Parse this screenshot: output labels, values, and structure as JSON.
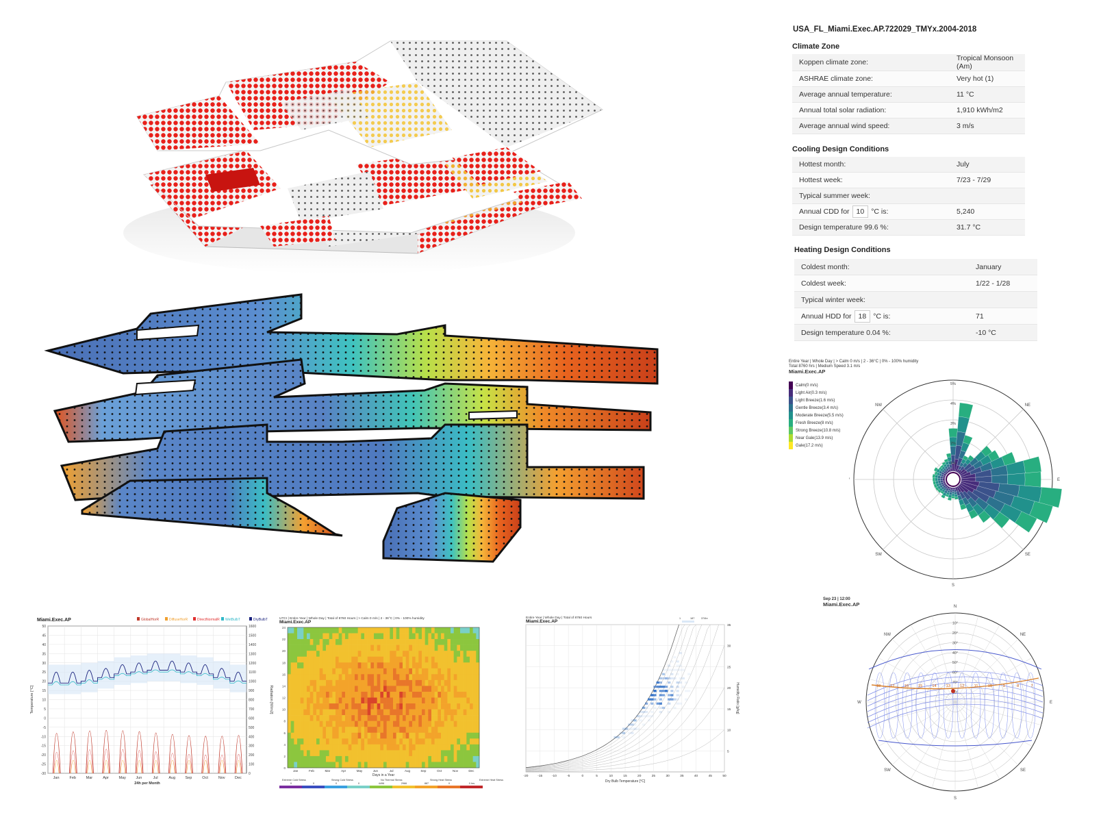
{
  "summary": {
    "file_title": "USA_FL_Miami.Exec.AP.722029_TMYx.2004-2018",
    "climate_zone": {
      "heading": "Climate Zone",
      "rows": [
        {
          "label": "Koppen climate zone:",
          "value": "Tropical Monsoon (Am)"
        },
        {
          "label": "ASHRAE climate zone:",
          "value": "Very hot (1)"
        },
        {
          "label": "Average annual temperature:",
          "value": "11 °C"
        },
        {
          "label": "Annual total solar radiation:",
          "value": "1,910 kWh/m2"
        },
        {
          "label": "Average annual wind speed:",
          "value": "3 m/s"
        }
      ]
    },
    "cooling": {
      "heading": "Cooling Design Conditions",
      "hottest_month_label": "Hottest month:",
      "hottest_month": "July",
      "hottest_week_label": "Hottest week:",
      "hottest_week": "7/23 - 7/29",
      "typical_week_label": "Typical summer week:",
      "typical_week": "",
      "cdd_prefix": "Annual CDD for",
      "cdd_base": "10",
      "cdd_suffix": "°C is:",
      "cdd_value": "5,240",
      "design_temp_label": "Design temperature 99.6 %:",
      "design_temp": "31.7 °C"
    },
    "heating": {
      "heading": "Heating Design Conditions",
      "coldest_month_label": "Coldest month:",
      "coldest_month": "January",
      "coldest_week_label": "Coldest week:",
      "coldest_week": "1/22 - 1/28",
      "typical_week_label": "Typical winter week:",
      "typical_week": "",
      "hdd_prefix": "Annual HDD for",
      "hdd_base": "18",
      "hdd_suffix": "°C is:",
      "hdd_value": "71",
      "design_temp_label": "Design temperature 0.04 %:",
      "design_temp": "-10 °C"
    }
  },
  "windrose": {
    "header_line1": "Entire Year | Whole Day | > Calm 0 m/s | 2 - 36°C | 0% - 100% humidity",
    "header_line2": "Total 8760 hrs | Medium Speed 3.1 m/s",
    "station": "Miami.Exec.AP",
    "legend": [
      {
        "label": "Calm(0 m/s)",
        "color": "#440154"
      },
      {
        "label": "Light Air(0.3 m/s)",
        "color": "#472d7b"
      },
      {
        "label": "Light Breeze(1.6 m/s)",
        "color": "#3b528b"
      },
      {
        "label": "Gentle Breeze(3.4 m/s)",
        "color": "#2c728e"
      },
      {
        "label": "Moderate Breeze(5.5 m/s)",
        "color": "#21918c"
      },
      {
        "label": "Fresh Breeze(8 m/s)",
        "color": "#28ae80"
      },
      {
        "label": "Strong Breeze(10.8 m/s)",
        "color": "#5ec962"
      },
      {
        "label": "Near Gale(13.9 m/s)",
        "color": "#addc30"
      },
      {
        "label": "Gale(17.2 m/s)",
        "color": "#fde725"
      }
    ],
    "directions": {
      "n": "N",
      "ne": "NE",
      "e": "E",
      "se": "SE",
      "s": "S",
      "sw": "SW",
      "w": "W",
      "nw": "NW"
    },
    "rings": [
      "5%",
      "4%",
      "3%",
      "2%",
      "1%"
    ]
  },
  "sunpath": {
    "header": "Sep 23 | 12:00",
    "station": "Miami.Exec.AP",
    "directions": {
      "n": "N",
      "ne": "NE",
      "e": "E",
      "se": "SE",
      "s": "S",
      "sw": "SW",
      "w": "W",
      "nw": "NW"
    },
    "altitudes": [
      "10°",
      "20°",
      "30°",
      "40°",
      "50°",
      "60°",
      "70°",
      "80°"
    ],
    "hours": [
      "18",
      "17",
      "16",
      "15",
      "14",
      "13",
      "12",
      "11",
      "10",
      "9",
      "8",
      "7"
    ]
  },
  "chart_data": [
    {
      "type": "line",
      "title": "Miami.Exec.AP",
      "legend": [
        "GlobalHorR",
        "DiffuseHorR",
        "DirectNormalR",
        "WetBulbT",
        "DryBulbT"
      ],
      "xlabel": "24h per Month",
      "ylabel": "Temperature [°C]",
      "y2label": "Radiation [W/m2]",
      "months": [
        "Jan",
        "Feb",
        "Mar",
        "Apr",
        "May",
        "Jun",
        "Jul",
        "Aug",
        "Sep",
        "Oct",
        "Nov",
        "Dec"
      ],
      "ylim": [
        -30,
        50
      ],
      "y_ticks": [
        "50",
        "45",
        "40",
        "35",
        "30",
        "25",
        "20",
        "15",
        "10",
        "5",
        "0",
        "-5",
        "-10",
        "-15",
        "-20",
        "-25",
        "-30"
      ],
      "y2_ticks": [
        "1600",
        "1500",
        "1400",
        "1300",
        "1200",
        "1100",
        "1000",
        "900",
        "800",
        "700",
        "600",
        "500",
        "400",
        "300",
        "200",
        "100",
        "0"
      ],
      "drybulb_monthly_peak": [
        25,
        25,
        26,
        27,
        29,
        30,
        31,
        31,
        30,
        29,
        27,
        25
      ],
      "drybulb_monthly_low": [
        19,
        19,
        20,
        22,
        24,
        25,
        26,
        26,
        25,
        24,
        22,
        20
      ]
    },
    {
      "type": "heatmap",
      "header": "UTCI | Entire Year | Whole Day | Total of 8760 Hours | > Calm 0 m/s | 2 - 36°C | 0% - 100% humidity",
      "title": "Miami.Exec.AP",
      "xlabel": "Days in a Year",
      "months": [
        "Jan",
        "Feb",
        "Mar",
        "Apr",
        "May",
        "Jun",
        "Jul",
        "Aug",
        "Sep",
        "Oct",
        "Nov",
        "Dec"
      ],
      "hours": [
        "24",
        "22",
        "20",
        "18",
        "16",
        "14",
        "12",
        "10",
        "8",
        "6",
        "4",
        "2",
        "0"
      ],
      "legend_labels": [
        "Extreme Cold Stress",
        "Strong Cold Stress",
        "No Thermal Stress",
        "Strong Heat Stress",
        "Extreme Heat Stress"
      ],
      "legend_counts": [
        "0",
        "0",
        "0",
        "0",
        "4496",
        "2966",
        "887",
        "0",
        "0 hrs"
      ]
    },
    {
      "type": "scatter",
      "header": "Entire Year | Whole Day | Total of 8760 Hours",
      "title": "Miami.Exec.AP",
      "xlabel": "Dry Bulb Temperature [°C]",
      "ylabel": "Humidity Ratio [g/kg]",
      "x_ticks": [
        "-20",
        "-15",
        "-10",
        "-5",
        "0",
        "5",
        "10",
        "15",
        "20",
        "25",
        "30",
        "35",
        "40",
        "45",
        "50"
      ],
      "y_ticks": [
        "35",
        "30",
        "25",
        "20",
        "15",
        "10",
        "5"
      ],
      "xlim": [
        -20,
        50
      ],
      "ylim": [
        0,
        35
      ],
      "density_legend": [
        "1",
        "187",
        "374hr"
      ],
      "cluster_center": {
        "t": 27,
        "w": 19
      }
    }
  ]
}
